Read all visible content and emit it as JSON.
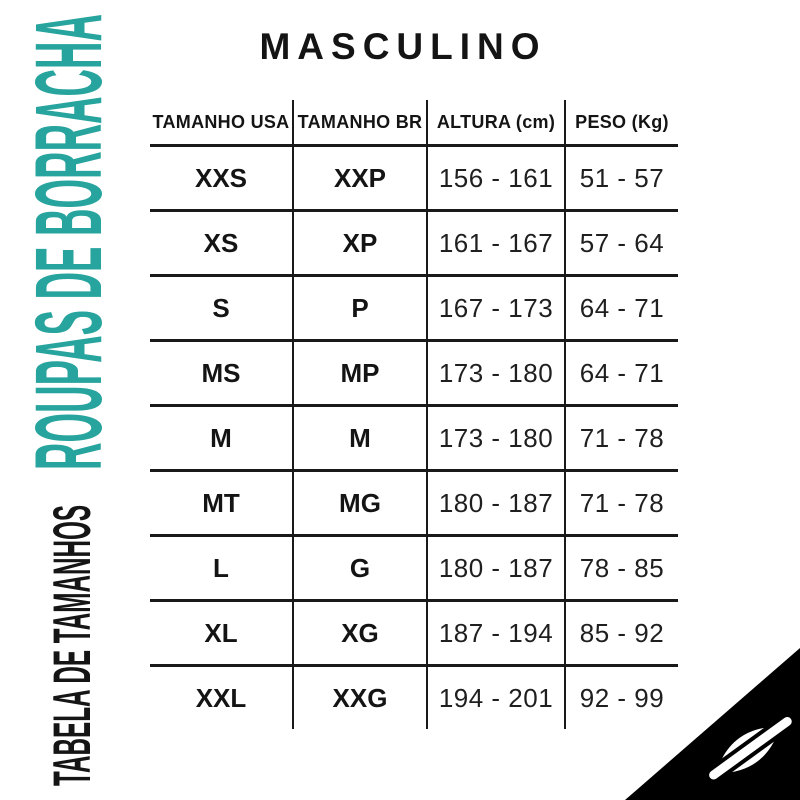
{
  "page": {
    "background": "#ffffff"
  },
  "left_rail": {
    "title": "ROUPAS DE BORRACHA",
    "title_color": "#27a49d",
    "subtitle": "TABELA DE TAMANHOS",
    "subtitle_color": "#151515"
  },
  "main": {
    "title": "MASCULINO"
  },
  "size_table": {
    "columns": [
      "TAMANHO USA",
      "TAMANHO BR",
      "ALTURA (cm)",
      "PESO (Kg)"
    ],
    "rows": [
      [
        "XXS",
        "XXP",
        "156 - 161",
        "51 - 57"
      ],
      [
        "XS",
        "XP",
        "161 - 167",
        "57 - 64"
      ],
      [
        "S",
        "P",
        "167 - 173",
        "64 - 71"
      ],
      [
        "MS",
        "MP",
        "173 - 180",
        "64 - 71"
      ],
      [
        "M",
        "M",
        "173 - 180",
        "71 - 78"
      ],
      [
        "MT",
        "MG",
        "180 - 187",
        "71 - 78"
      ],
      [
        "L",
        "G",
        "180 - 187",
        "78 - 85"
      ],
      [
        "XL",
        "XG",
        "187 - 194",
        "85 - 92"
      ],
      [
        "XXL",
        "XXG",
        "194 - 201",
        "92 - 99"
      ]
    ]
  },
  "brand": {
    "logo": "mormaii-wave-icon",
    "triangle_color": "#000000",
    "glyph_color": "#ffffff"
  },
  "chart_data": {
    "type": "table",
    "title": "MASCULINO",
    "side_label_primary": "ROUPAS DE BORRACHA",
    "side_label_secondary": "TABELA DE TAMANHOS",
    "columns": [
      "TAMANHO USA",
      "TAMANHO BR",
      "ALTURA (cm)",
      "PESO (Kg)"
    ],
    "rows": [
      {
        "tamanho_usa": "XXS",
        "tamanho_br": "XXP",
        "altura_cm": "156 - 161",
        "peso_kg": "51 - 57"
      },
      {
        "tamanho_usa": "XS",
        "tamanho_br": "XP",
        "altura_cm": "161 - 167",
        "peso_kg": "57 - 64"
      },
      {
        "tamanho_usa": "S",
        "tamanho_br": "P",
        "altura_cm": "167 - 173",
        "peso_kg": "64 - 71"
      },
      {
        "tamanho_usa": "MS",
        "tamanho_br": "MP",
        "altura_cm": "173 - 180",
        "peso_kg": "64 - 71"
      },
      {
        "tamanho_usa": "M",
        "tamanho_br": "M",
        "altura_cm": "173 - 180",
        "peso_kg": "71 - 78"
      },
      {
        "tamanho_usa": "MT",
        "tamanho_br": "MG",
        "altura_cm": "180 - 187",
        "peso_kg": "71 - 78"
      },
      {
        "tamanho_usa": "L",
        "tamanho_br": "G",
        "altura_cm": "180 - 187",
        "peso_kg": "78 - 85"
      },
      {
        "tamanho_usa": "XL",
        "tamanho_br": "XG",
        "altura_cm": "187 - 194",
        "peso_kg": "85 - 92"
      },
      {
        "tamanho_usa": "XXL",
        "tamanho_br": "XXG",
        "altura_cm": "194 - 201",
        "peso_kg": "92 - 99"
      }
    ]
  }
}
